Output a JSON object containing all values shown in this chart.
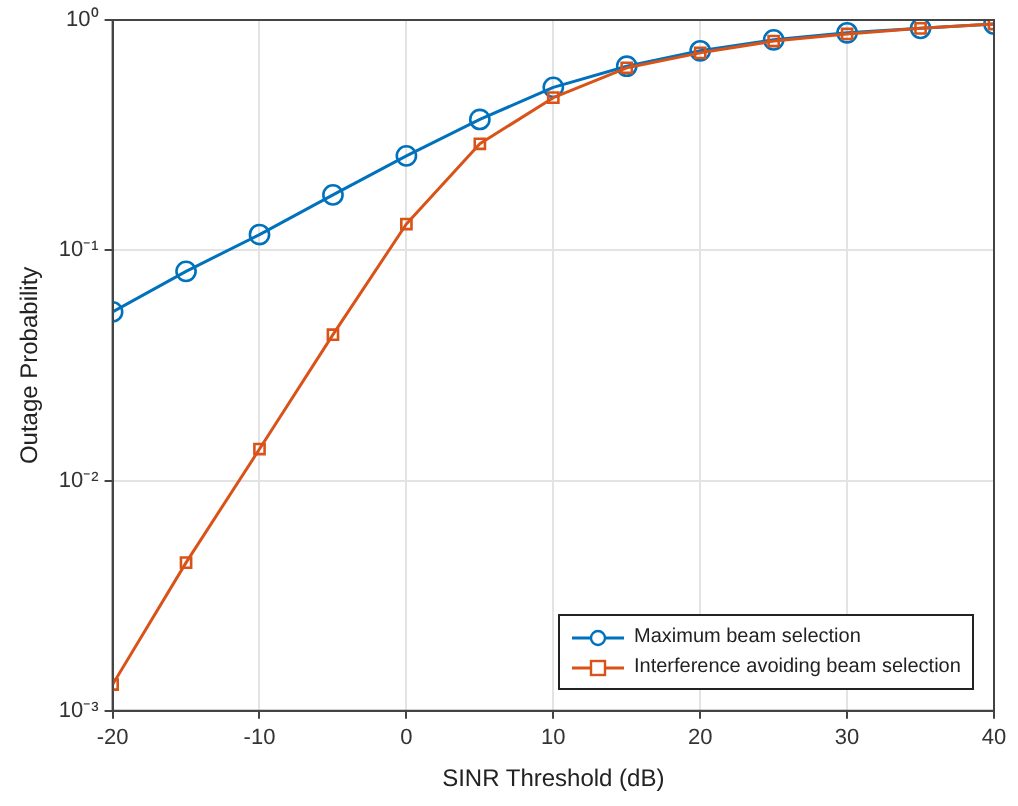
{
  "chart_data": {
    "type": "line",
    "xlabel": "SINR Threshold (dB)",
    "ylabel": "Outage Probability",
    "x": [
      -20,
      -15,
      -10,
      -5,
      0,
      5,
      10,
      15,
      20,
      25,
      30,
      35,
      40
    ],
    "series": [
      {
        "name": "Maximum beam selection",
        "color": "#0072bd",
        "marker": "circle",
        "values": [
          0.054,
          0.081,
          0.117,
          0.174,
          0.257,
          0.37,
          0.51,
          0.63,
          0.735,
          0.82,
          0.88,
          0.92,
          0.96
        ]
      },
      {
        "name": "Interference avoiding beam selection",
        "color": "#d95319",
        "marker": "square",
        "values": [
          0.0013,
          0.0044,
          0.0137,
          0.043,
          0.13,
          0.29,
          0.46,
          0.62,
          0.72,
          0.81,
          0.87,
          0.92,
          0.96
        ]
      }
    ],
    "xlim": [
      -20,
      40
    ],
    "xticks": [
      -20,
      -10,
      0,
      10,
      20,
      30,
      40
    ],
    "ylim": [
      0.001,
      1
    ],
    "yticks": [
      {
        "value": 0.001,
        "label": "10⁻³"
      },
      {
        "value": 0.01,
        "label": "10⁻²"
      },
      {
        "value": 0.1,
        "label": "10⁻¹"
      },
      {
        "value": 1,
        "label": "10⁰"
      }
    ],
    "log": "y",
    "grid": true,
    "legend": "bottom right",
    "line_style": "solid"
  }
}
